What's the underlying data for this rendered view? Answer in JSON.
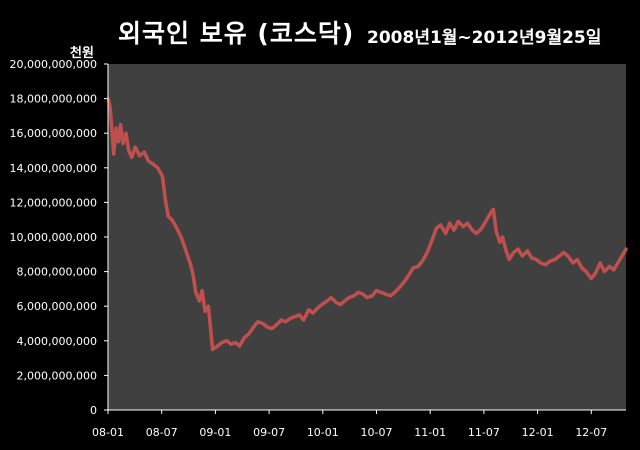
{
  "chart_data": {
    "type": "line",
    "title": "외국인 보유 (코스닥)",
    "subtitle": "2008년1월~2012년9월25일",
    "ylabel": "천원",
    "xlabel": "",
    "ylim": [
      0,
      20000000000
    ],
    "yticks": [
      0,
      2000000000,
      4000000000,
      6000000000,
      8000000000,
      10000000000,
      12000000000,
      14000000000,
      16000000000,
      18000000000,
      20000000000
    ],
    "ytick_labels": [
      "0",
      "2,000,000,000",
      "4,000,000,000",
      "6,000,000,000",
      "8,000,000,000",
      "10,000,000,000",
      "12,000,000,000",
      "14,000,000,000",
      "16,000,000,000",
      "18,000,000,000",
      "20,000,000,000"
    ],
    "xlim": [
      "2008-01-01",
      "2012-09-25"
    ],
    "xtick_labels": [
      "08-01",
      "08-07",
      "09-01",
      "09-07",
      "10-01",
      "10-07",
      "11-01",
      "11-07",
      "12-01",
      "12-07"
    ],
    "grid": false,
    "legend": "none",
    "colors": {
      "background": "#000000",
      "plot_area": "#404040",
      "line": "#c0504d",
      "text": "#ffffff",
      "axis": "#ffffff"
    },
    "series": [
      {
        "x": [
          "2008-01-02",
          "2008-01-08",
          "2008-01-14",
          "2008-01-20",
          "2008-01-28",
          "2008-02-05",
          "2008-02-12",
          "2008-02-20",
          "2008-03-01",
          "2008-03-10",
          "2008-03-20",
          "2008-04-01",
          "2008-04-15",
          "2008-05-01",
          "2008-05-15",
          "2008-06-01",
          "2008-06-15",
          "2008-07-01",
          "2008-07-10",
          "2008-07-20",
          "2008-08-01",
          "2008-08-15",
          "2008-09-01",
          "2008-09-15",
          "2008-10-01",
          "2008-10-10",
          "2008-10-20",
          "2008-11-01",
          "2008-11-10",
          "2008-11-20",
          "2008-12-01",
          "2008-12-15",
          "2009-01-01",
          "2009-01-15",
          "2009-02-01",
          "2009-02-15",
          "2009-03-01",
          "2009-03-15",
          "2009-04-01",
          "2009-04-15",
          "2009-05-01",
          "2009-05-15",
          "2009-06-01",
          "2009-06-15",
          "2009-07-01",
          "2009-07-15",
          "2009-08-01",
          "2009-08-15",
          "2009-09-01",
          "2009-09-15",
          "2009-10-01",
          "2009-10-15",
          "2009-11-01",
          "2009-11-15",
          "2009-12-01",
          "2009-12-15",
          "2010-01-01",
          "2010-01-15",
          "2010-02-01",
          "2010-02-15",
          "2010-03-01",
          "2010-03-15",
          "2010-04-01",
          "2010-04-15",
          "2010-05-01",
          "2010-05-15",
          "2010-06-01",
          "2010-06-15",
          "2010-07-01",
          "2010-07-15",
          "2010-08-01",
          "2010-08-15",
          "2010-09-01",
          "2010-09-15",
          "2010-10-01",
          "2010-10-15",
          "2010-11-01",
          "2010-11-15",
          "2010-12-01",
          "2010-12-15",
          "2011-01-01",
          "2011-01-15",
          "2011-02-01",
          "2011-02-15",
          "2011-03-01",
          "2011-03-15",
          "2011-04-01",
          "2011-04-15",
          "2011-05-01",
          "2011-05-15",
          "2011-06-01",
          "2011-06-15",
          "2011-07-01",
          "2011-07-10",
          "2011-07-20",
          "2011-08-01",
          "2011-08-10",
          "2011-08-20",
          "2011-09-01",
          "2011-09-15",
          "2011-10-01",
          "2011-10-15",
          "2011-11-01",
          "2011-11-15",
          "2011-12-01",
          "2011-12-15",
          "2012-01-01",
          "2012-01-15",
          "2012-02-01",
          "2012-02-15",
          "2012-03-01",
          "2012-03-15",
          "2012-04-01",
          "2012-04-15",
          "2012-05-01",
          "2012-05-15",
          "2012-06-01",
          "2012-06-15",
          "2012-07-01",
          "2012-07-15",
          "2012-08-01",
          "2012-08-15",
          "2012-09-01",
          "2012-09-15",
          "2012-09-25"
        ],
        "values": [
          18000000000,
          17500000000,
          16200000000,
          14800000000,
          16300000000,
          15500000000,
          16500000000,
          15400000000,
          16000000000,
          15000000000,
          14600000000,
          15200000000,
          14700000000,
          14900000000,
          14400000000,
          14200000000,
          14000000000,
          13500000000,
          12200000000,
          11200000000,
          11000000000,
          10600000000,
          10000000000,
          9300000000,
          8500000000,
          7900000000,
          6800000000,
          6300000000,
          6900000000,
          5700000000,
          6000000000,
          3500000000,
          3700000000,
          3900000000,
          4000000000,
          3800000000,
          3900000000,
          3700000000,
          4200000000,
          4400000000,
          4800000000,
          5100000000,
          5000000000,
          4800000000,
          4700000000,
          4900000000,
          5200000000,
          5100000000,
          5300000000,
          5400000000,
          5500000000,
          5200000000,
          5800000000,
          5600000000,
          5900000000,
          6100000000,
          6300000000,
          6500000000,
          6200000000,
          6100000000,
          6300000000,
          6500000000,
          6600000000,
          6800000000,
          6700000000,
          6500000000,
          6600000000,
          6900000000,
          6800000000,
          6700000000,
          6600000000,
          6800000000,
          7100000000,
          7400000000,
          7800000000,
          8200000000,
          8300000000,
          8600000000,
          9100000000,
          9700000000,
          10500000000,
          10700000000,
          10200000000,
          10800000000,
          10400000000,
          10900000000,
          10600000000,
          10800000000,
          10400000000,
          10200000000,
          10500000000,
          10900000000,
          11400000000,
          11600000000,
          10300000000,
          9700000000,
          10000000000,
          9300000000,
          8700000000,
          9100000000,
          9300000000,
          8900000000,
          9200000000,
          8800000000,
          8700000000,
          8500000000,
          8400000000,
          8600000000,
          8700000000,
          8900000000,
          9100000000,
          8900000000,
          8500000000,
          8700000000,
          8200000000,
          8000000000,
          7600000000,
          7900000000,
          8500000000,
          8000000000,
          8300000000,
          8100000000,
          8600000000,
          9000000000,
          9300000000
        ]
      }
    ]
  }
}
